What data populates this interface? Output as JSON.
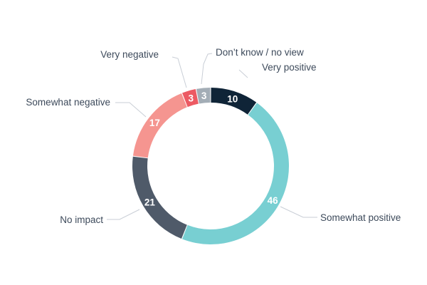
{
  "chart_data": {
    "type": "pie",
    "variant": "donut",
    "title": "",
    "slices": [
      {
        "label": "Very positive",
        "value": 10,
        "color": "#0f2437"
      },
      {
        "label": "Somewhat positive",
        "value": 46,
        "color": "#78cfd2"
      },
      {
        "label": "No impact",
        "value": 21,
        "color": "#4f5a69"
      },
      {
        "label": "Somewhat negative",
        "value": 17,
        "color": "#f59590"
      },
      {
        "label": "Very negative",
        "value": 3,
        "color": "#ec5a63"
      },
      {
        "label": "Don’t know / no view",
        "value": 3,
        "color": "#a3adb6"
      }
    ]
  }
}
